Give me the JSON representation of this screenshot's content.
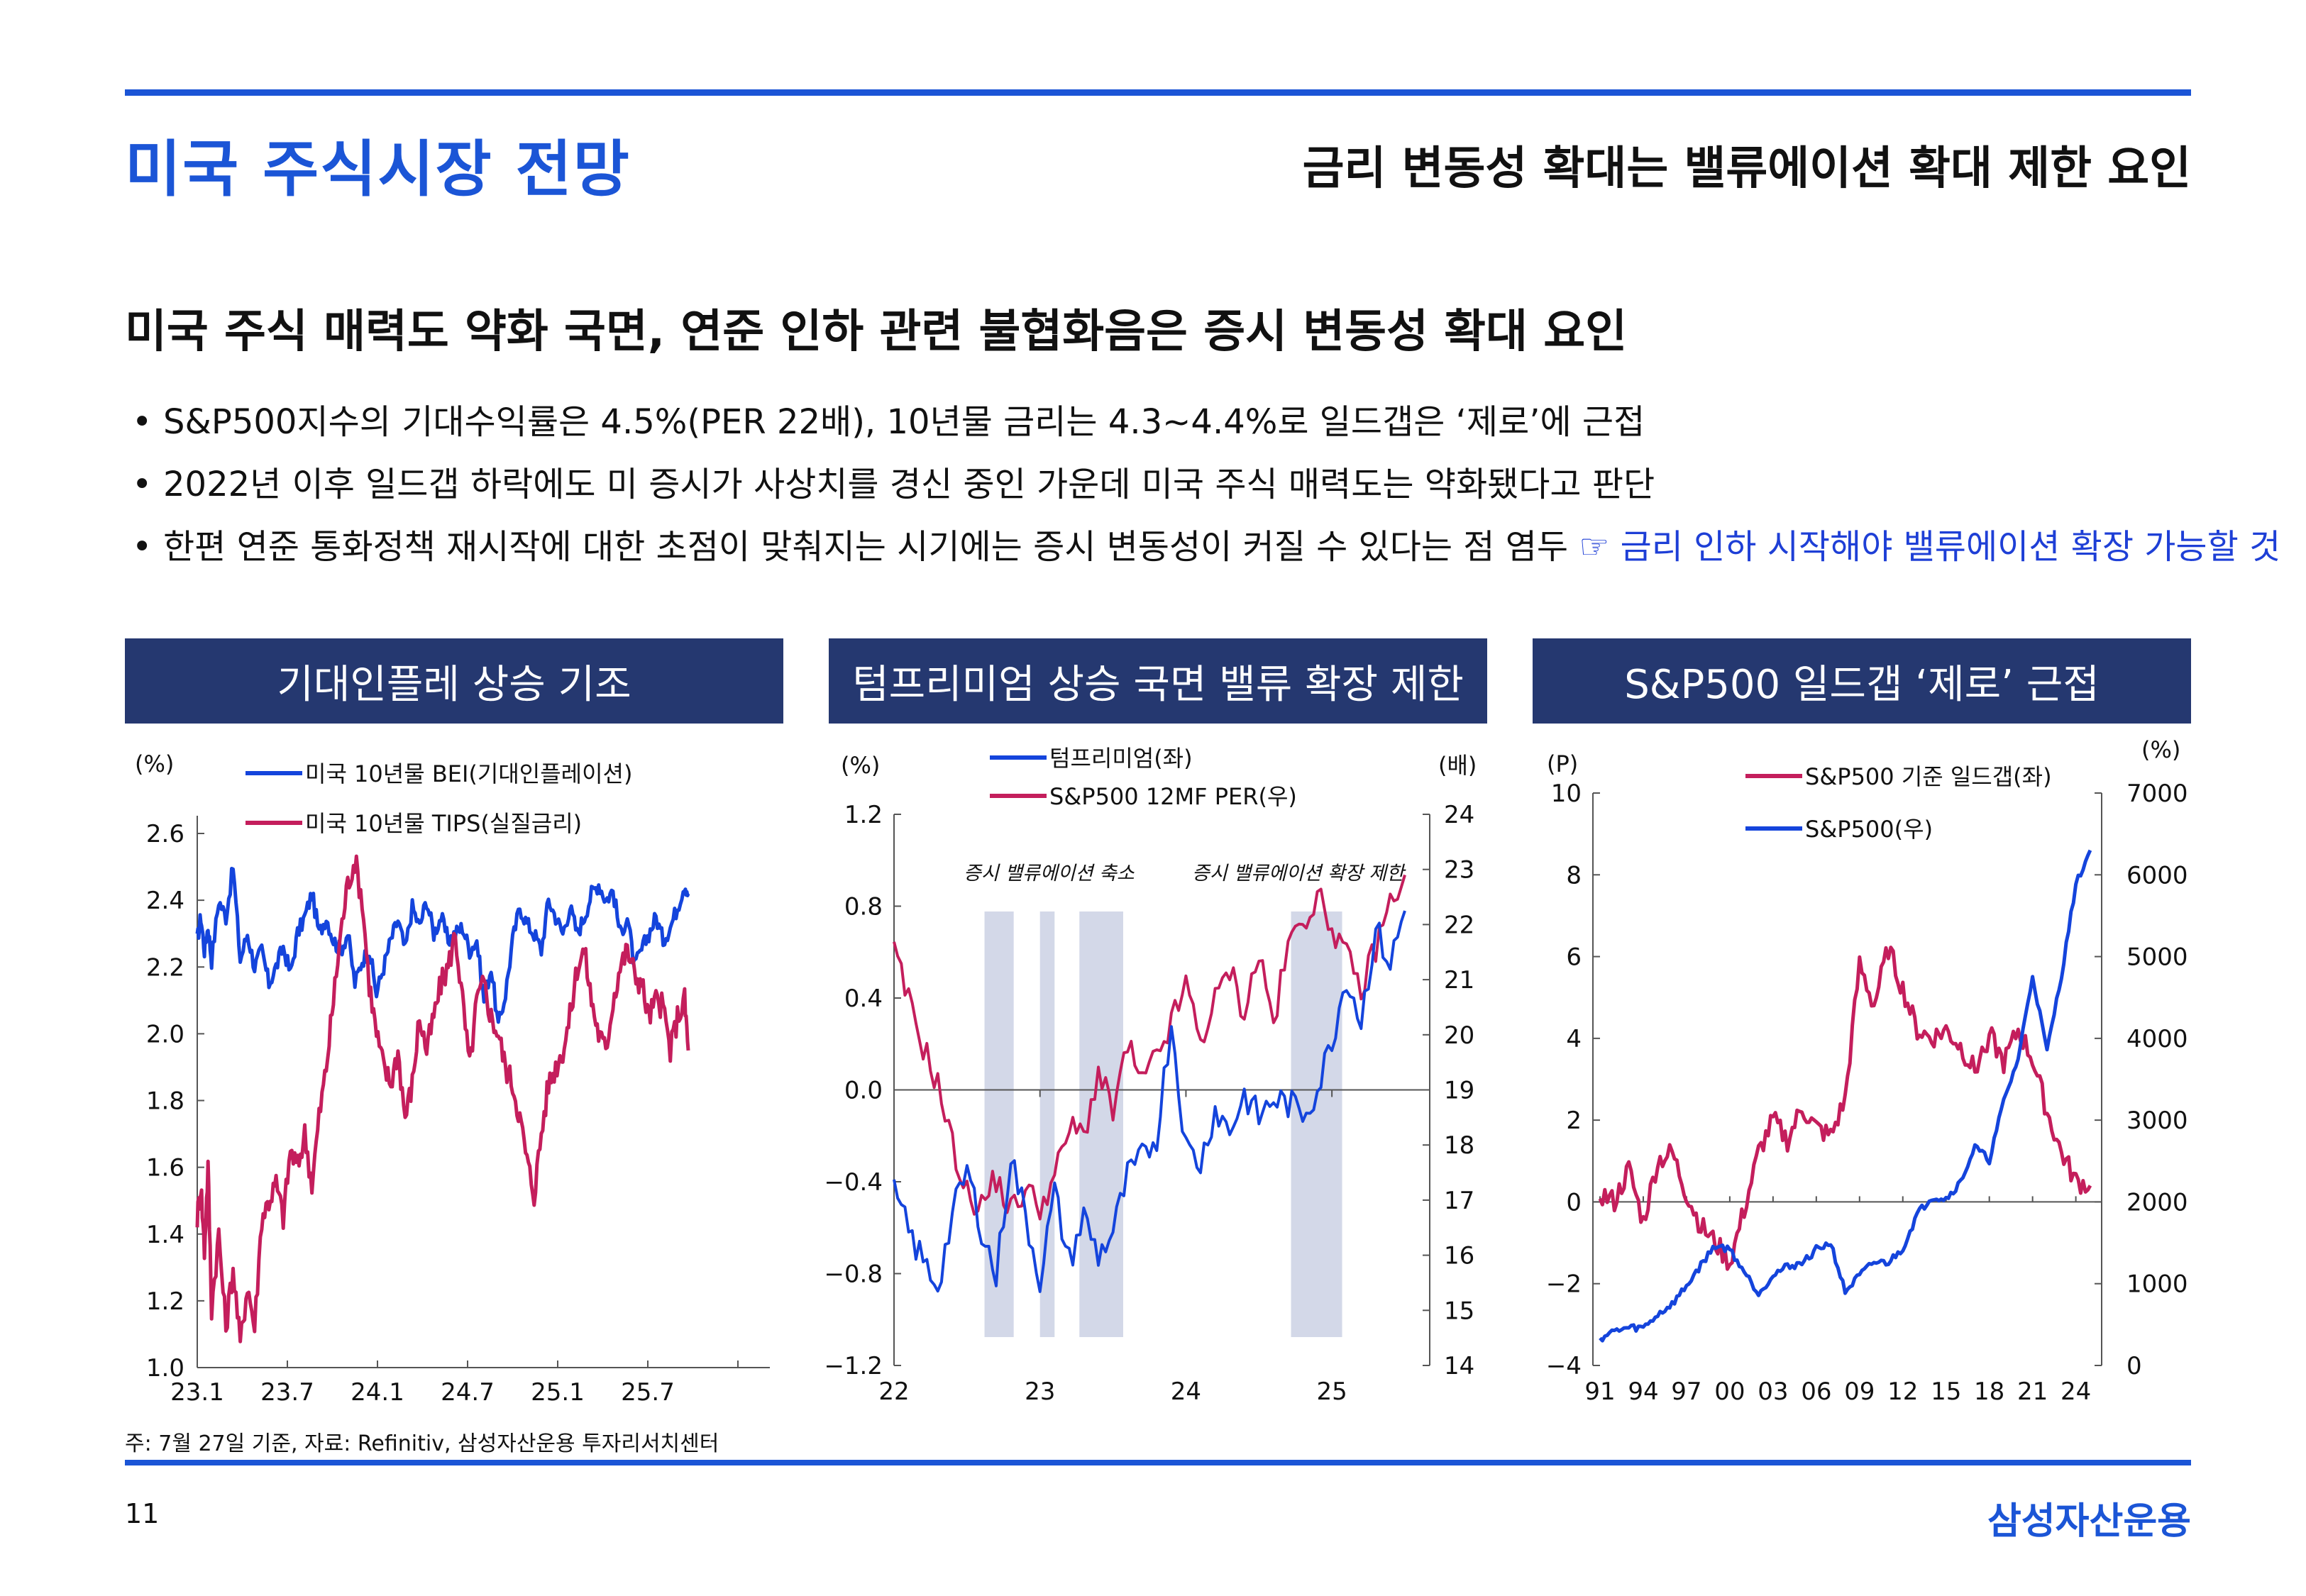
{
  "header": {
    "title": "미국 주식시장 전망",
    "subtitle": "금리 변동성 확대는 밸류에이션 확대 제한 요인"
  },
  "headline": "미국 주식 매력도 약화 국면, 연준 인하 관련 불협화음은 증시 변동성 확대 요인",
  "bullets": [
    {
      "text": "S&P500지수의 기대수익률은 4.5%(PER 22배), 10년물 금리는 4.3~4.4%로 일드갭은 ‘제로’에 근접",
      "note": ""
    },
    {
      "text": "2022년 이후 일드갭 하락에도 미 증시가 사상치를 경신 중인 가운데 미국 주식 매력도는 약화됐다고 판단",
      "note": ""
    },
    {
      "text": "한편 연준 통화정책 재시작에 대한 초점이 맞춰지는 시기에는 증시 변동성이 커질 수 있다는 점 염두",
      "note": "☞ 금리 인하 시작해야 밸류에이션 확장 가능할 것"
    }
  ],
  "panels": [
    {
      "title": "기대인플레 상승 기조"
    },
    {
      "title": "텀프리미엄 상승 국면 밸류 확장 제한"
    },
    {
      "title": "S&P500 일드갭  ‘제로’ 근접"
    }
  ],
  "colors": {
    "blue_series": "#1444dc",
    "red_series": "#c41e5c",
    "shade": "#d3d8e8",
    "panel_bg": "#253870",
    "accent": "#1b55d6"
  },
  "chart_data": [
    {
      "type": "line",
      "title": "기대인플레 상승 기조",
      "ylabel": "(%)",
      "ylim": [
        1.0,
        2.6
      ],
      "yticks": [
        "2.6",
        "2.4",
        "2.2",
        "2.0",
        "1.8",
        "1.6",
        "1.4",
        "1.2",
        "1.0"
      ],
      "xticks": [
        "23.1",
        "23.7",
        "24.1",
        "24.7",
        "25.1",
        "25.7"
      ],
      "series": [
        {
          "name": "미국 10년물 BEI(기대인플레이션)",
          "color": "#1444dc",
          "x": [
            0,
            0.5,
            1,
            1.5,
            2,
            3,
            4,
            5,
            6,
            7,
            8,
            9,
            10,
            11,
            12,
            13,
            14,
            15,
            16,
            17,
            18,
            19,
            20,
            21,
            22,
            23,
            24,
            25,
            26,
            27,
            28,
            29,
            30,
            31,
            32,
            33,
            34,
            35,
            36,
            37,
            38,
            39,
            40,
            41,
            42,
            43,
            44,
            45,
            46,
            47,
            48,
            49,
            50,
            51,
            52,
            53,
            54,
            55,
            56,
            57,
            58,
            59,
            60,
            61,
            62,
            63,
            64,
            65,
            66,
            67,
            68,
            68.5
          ],
          "values": [
            2.28,
            2.35,
            2.25,
            2.32,
            2.22,
            2.4,
            2.35,
            2.5,
            2.22,
            2.3,
            2.2,
            2.25,
            2.15,
            2.2,
            2.26,
            2.18,
            2.3,
            2.35,
            2.42,
            2.3,
            2.35,
            2.28,
            2.25,
            2.3,
            2.15,
            2.22,
            2.25,
            2.12,
            2.2,
            2.28,
            2.34,
            2.25,
            2.38,
            2.32,
            2.4,
            2.3,
            2.35,
            2.28,
            2.3,
            2.32,
            2.25,
            2.28,
            2.1,
            2.2,
            2.02,
            2.12,
            2.28,
            2.38,
            2.33,
            2.3,
            2.25,
            2.4,
            2.35,
            2.3,
            2.38,
            2.3,
            2.35,
            2.42,
            2.45,
            2.4,
            2.43,
            2.3,
            2.35,
            2.2,
            2.25,
            2.3,
            2.35,
            2.28,
            2.32,
            2.38,
            2.45,
            2.42
          ]
        },
        {
          "name": "미국 10년물 TIPS(실질금리)",
          "color": "#c41e5c",
          "x": [
            0,
            0.5,
            1,
            1.5,
            2,
            3,
            4,
            5,
            6,
            7,
            8,
            9,
            10,
            11,
            12,
            13,
            14,
            15,
            16,
            17,
            18,
            19,
            20,
            21,
            22,
            23,
            24,
            25,
            26,
            27,
            28,
            29,
            30,
            31,
            32,
            33,
            34,
            35,
            36,
            37,
            38,
            39,
            40,
            41,
            42,
            43,
            44,
            45,
            46,
            47,
            48,
            49,
            50,
            51,
            52,
            53,
            54,
            55,
            56,
            57,
            58,
            59,
            60,
            61,
            62,
            63,
            64,
            65,
            66,
            67,
            68,
            68.5
          ],
          "values": [
            1.45,
            1.55,
            1.35,
            1.6,
            1.18,
            1.4,
            1.12,
            1.3,
            1.07,
            1.25,
            1.12,
            1.45,
            1.5,
            1.55,
            1.45,
            1.65,
            1.6,
            1.7,
            1.55,
            1.75,
            1.9,
            2.1,
            2.3,
            2.45,
            2.52,
            2.4,
            2.15,
            2.0,
            1.9,
            1.85,
            1.95,
            1.75,
            1.85,
            2.05,
            1.95,
            2.05,
            2.15,
            2.2,
            2.3,
            2.1,
            1.9,
            2.1,
            2.15,
            2.05,
            2.0,
            1.9,
            1.85,
            1.75,
            1.62,
            1.52,
            1.7,
            1.85,
            1.9,
            1.95,
            2.05,
            2.2,
            2.25,
            2.1,
            2.0,
            1.95,
            2.1,
            2.2,
            2.25,
            2.18,
            2.15,
            2.05,
            2.1,
            2.08,
            1.95,
            2.05,
            2.1,
            1.95
          ]
        }
      ]
    },
    {
      "type": "line",
      "title": "텀프리미엄 상승 국면 밸류 확장 제한",
      "ylabel": "(%)",
      "ylabel_right": "(배)",
      "ylim": [
        -1.2,
        1.2
      ],
      "ylim_right": [
        14,
        24
      ],
      "yticks": [
        "1.2",
        "0.8",
        "0.4",
        "0.0",
        "-0.4",
        "-0.8",
        "-1.2"
      ],
      "yticks_right": [
        "24",
        "23",
        "22",
        "21",
        "20",
        "19",
        "18",
        "17",
        "16",
        "15",
        "14"
      ],
      "xticks": [
        "22",
        "23",
        "24",
        "25"
      ],
      "annotations": [
        "증시 밸류에이션 축소",
        "증시 밸류에이션 확장 제한"
      ],
      "shaded_regions": [
        [
          0.62,
          0.82
        ],
        [
          1.0,
          1.1
        ],
        [
          1.27,
          1.57
        ],
        [
          2.72,
          3.07
        ]
      ],
      "series": [
        {
          "name": "텀프리미엄(좌)",
          "color": "#1444dc",
          "axis": "left",
          "x": [
            0,
            0.1,
            0.2,
            0.3,
            0.4,
            0.5,
            0.6,
            0.7,
            0.8,
            0.9,
            1.0,
            1.1,
            1.2,
            1.3,
            1.4,
            1.5,
            1.6,
            1.7,
            1.8,
            1.9,
            2.0,
            2.1,
            2.2,
            2.3,
            2.4,
            2.5,
            2.6,
            2.7,
            2.8,
            2.9,
            3.0,
            3.1,
            3.2,
            3.3,
            3.4,
            3.5
          ],
          "values": [
            -0.45,
            -0.62,
            -0.75,
            -0.85,
            -0.55,
            -0.35,
            -0.6,
            -0.82,
            -0.28,
            -0.55,
            -0.82,
            -0.45,
            -0.75,
            -0.55,
            -0.72,
            -0.62,
            -0.38,
            -0.3,
            -0.2,
            0.3,
            -0.25,
            -0.32,
            -0.08,
            -0.18,
            -0.02,
            -0.12,
            -0.04,
            -0.06,
            -0.1,
            0.0,
            0.22,
            0.5,
            0.3,
            0.7,
            0.55,
            0.78
          ]
        },
        {
          "name": "S&P500 12MF PER(우)",
          "color": "#c41e5c",
          "axis": "right",
          "x": [
            0,
            0.1,
            0.2,
            0.3,
            0.4,
            0.5,
            0.6,
            0.7,
            0.8,
            0.9,
            1.0,
            1.1,
            1.2,
            1.3,
            1.4,
            1.5,
            1.6,
            1.7,
            1.8,
            1.9,
            2.0,
            2.1,
            2.2,
            2.3,
            2.4,
            2.5,
            2.6,
            2.7,
            2.8,
            2.9,
            3.0,
            3.1,
            3.2,
            3.3,
            3.4,
            3.5
          ],
          "values": [
            21.5,
            20.6,
            19.8,
            19.1,
            18.0,
            17.1,
            16.9,
            17.4,
            16.8,
            17.2,
            16.9,
            17.4,
            18.3,
            18.2,
            19.3,
            18.6,
            19.8,
            19.1,
            19.6,
            20.2,
            20.9,
            19.9,
            20.6,
            21.2,
            20.4,
            21.5,
            20.2,
            21.6,
            22.1,
            22.5,
            22.0,
            21.4,
            20.8,
            21.6,
            22.4,
            22.9
          ]
        }
      ]
    },
    {
      "type": "line",
      "title": "S&P500 일드갭  ‘제로’ 근접",
      "ylabel": "(P)",
      "ylabel_right": "(%)",
      "ylim": [
        -4,
        10
      ],
      "ylim_right": [
        0,
        7000
      ],
      "yticks": [
        "10",
        "8",
        "6",
        "4",
        "2",
        "0",
        "-2",
        "-4"
      ],
      "yticks_right": [
        "7000",
        "6000",
        "5000",
        "4000",
        "3000",
        "2000",
        "1000",
        "0"
      ],
      "xticks": [
        "91",
        "94",
        "97",
        "00",
        "03",
        "06",
        "09",
        "12",
        "15",
        "18",
        "21",
        "24"
      ],
      "series": [
        {
          "name": "S&P500 기준 일드갭(좌)",
          "color": "#c41e5c",
          "axis": "left",
          "x": [
            1991,
            1992,
            1993,
            1994,
            1995,
            1996,
            1997,
            1998,
            1999,
            2000,
            2001,
            2002,
            2003,
            2004,
            2005,
            2006,
            2007,
            2008,
            2009,
            2010,
            2011,
            2012,
            2013,
            2014,
            2015,
            2016,
            2017,
            2018,
            2019,
            2020,
            2021,
            2022,
            2023,
            2024,
            2025
          ],
          "values": [
            0.2,
            0.0,
            0.8,
            -0.5,
            1.0,
            1.2,
            0.2,
            -0.6,
            -1.0,
            -1.5,
            -0.2,
            1.2,
            2.0,
            1.5,
            2.3,
            1.8,
            1.6,
            2.5,
            5.8,
            4.8,
            6.2,
            5.2,
            4.2,
            4.0,
            4.2,
            3.8,
            3.2,
            4.1,
            3.4,
            4.2,
            3.5,
            2.2,
            1.2,
            0.5,
            0.4
          ]
        },
        {
          "name": "S&P500(우)",
          "color": "#1444dc",
          "axis": "right",
          "x": [
            1991,
            1992,
            1993,
            1994,
            1995,
            1996,
            1997,
            1998,
            1999,
            2000,
            2001,
            2002,
            2003,
            2004,
            2005,
            2006,
            2007,
            2008,
            2009,
            2010,
            2011,
            2012,
            2013,
            2014,
            2015,
            2016,
            2017,
            2018,
            2019,
            2020,
            2021,
            2022,
            2023,
            2024,
            2025
          ],
          "values": [
            330,
            420,
            460,
            460,
            620,
            750,
            970,
            1230,
            1470,
            1420,
            1150,
            880,
            1110,
            1210,
            1250,
            1420,
            1500,
            900,
            1100,
            1260,
            1260,
            1430,
            1850,
            2060,
            2040,
            2240,
            2670,
            2510,
            3230,
            3750,
            4770,
            3840,
            4770,
            5880,
            6300
          ]
        }
      ]
    }
  ],
  "footer": {
    "note": "주: 7월 27일 기준, 자료: Refinitiv, 삼성자산운용 투자리서치센터",
    "page_number": "11",
    "brand": "삼성자산운용"
  }
}
